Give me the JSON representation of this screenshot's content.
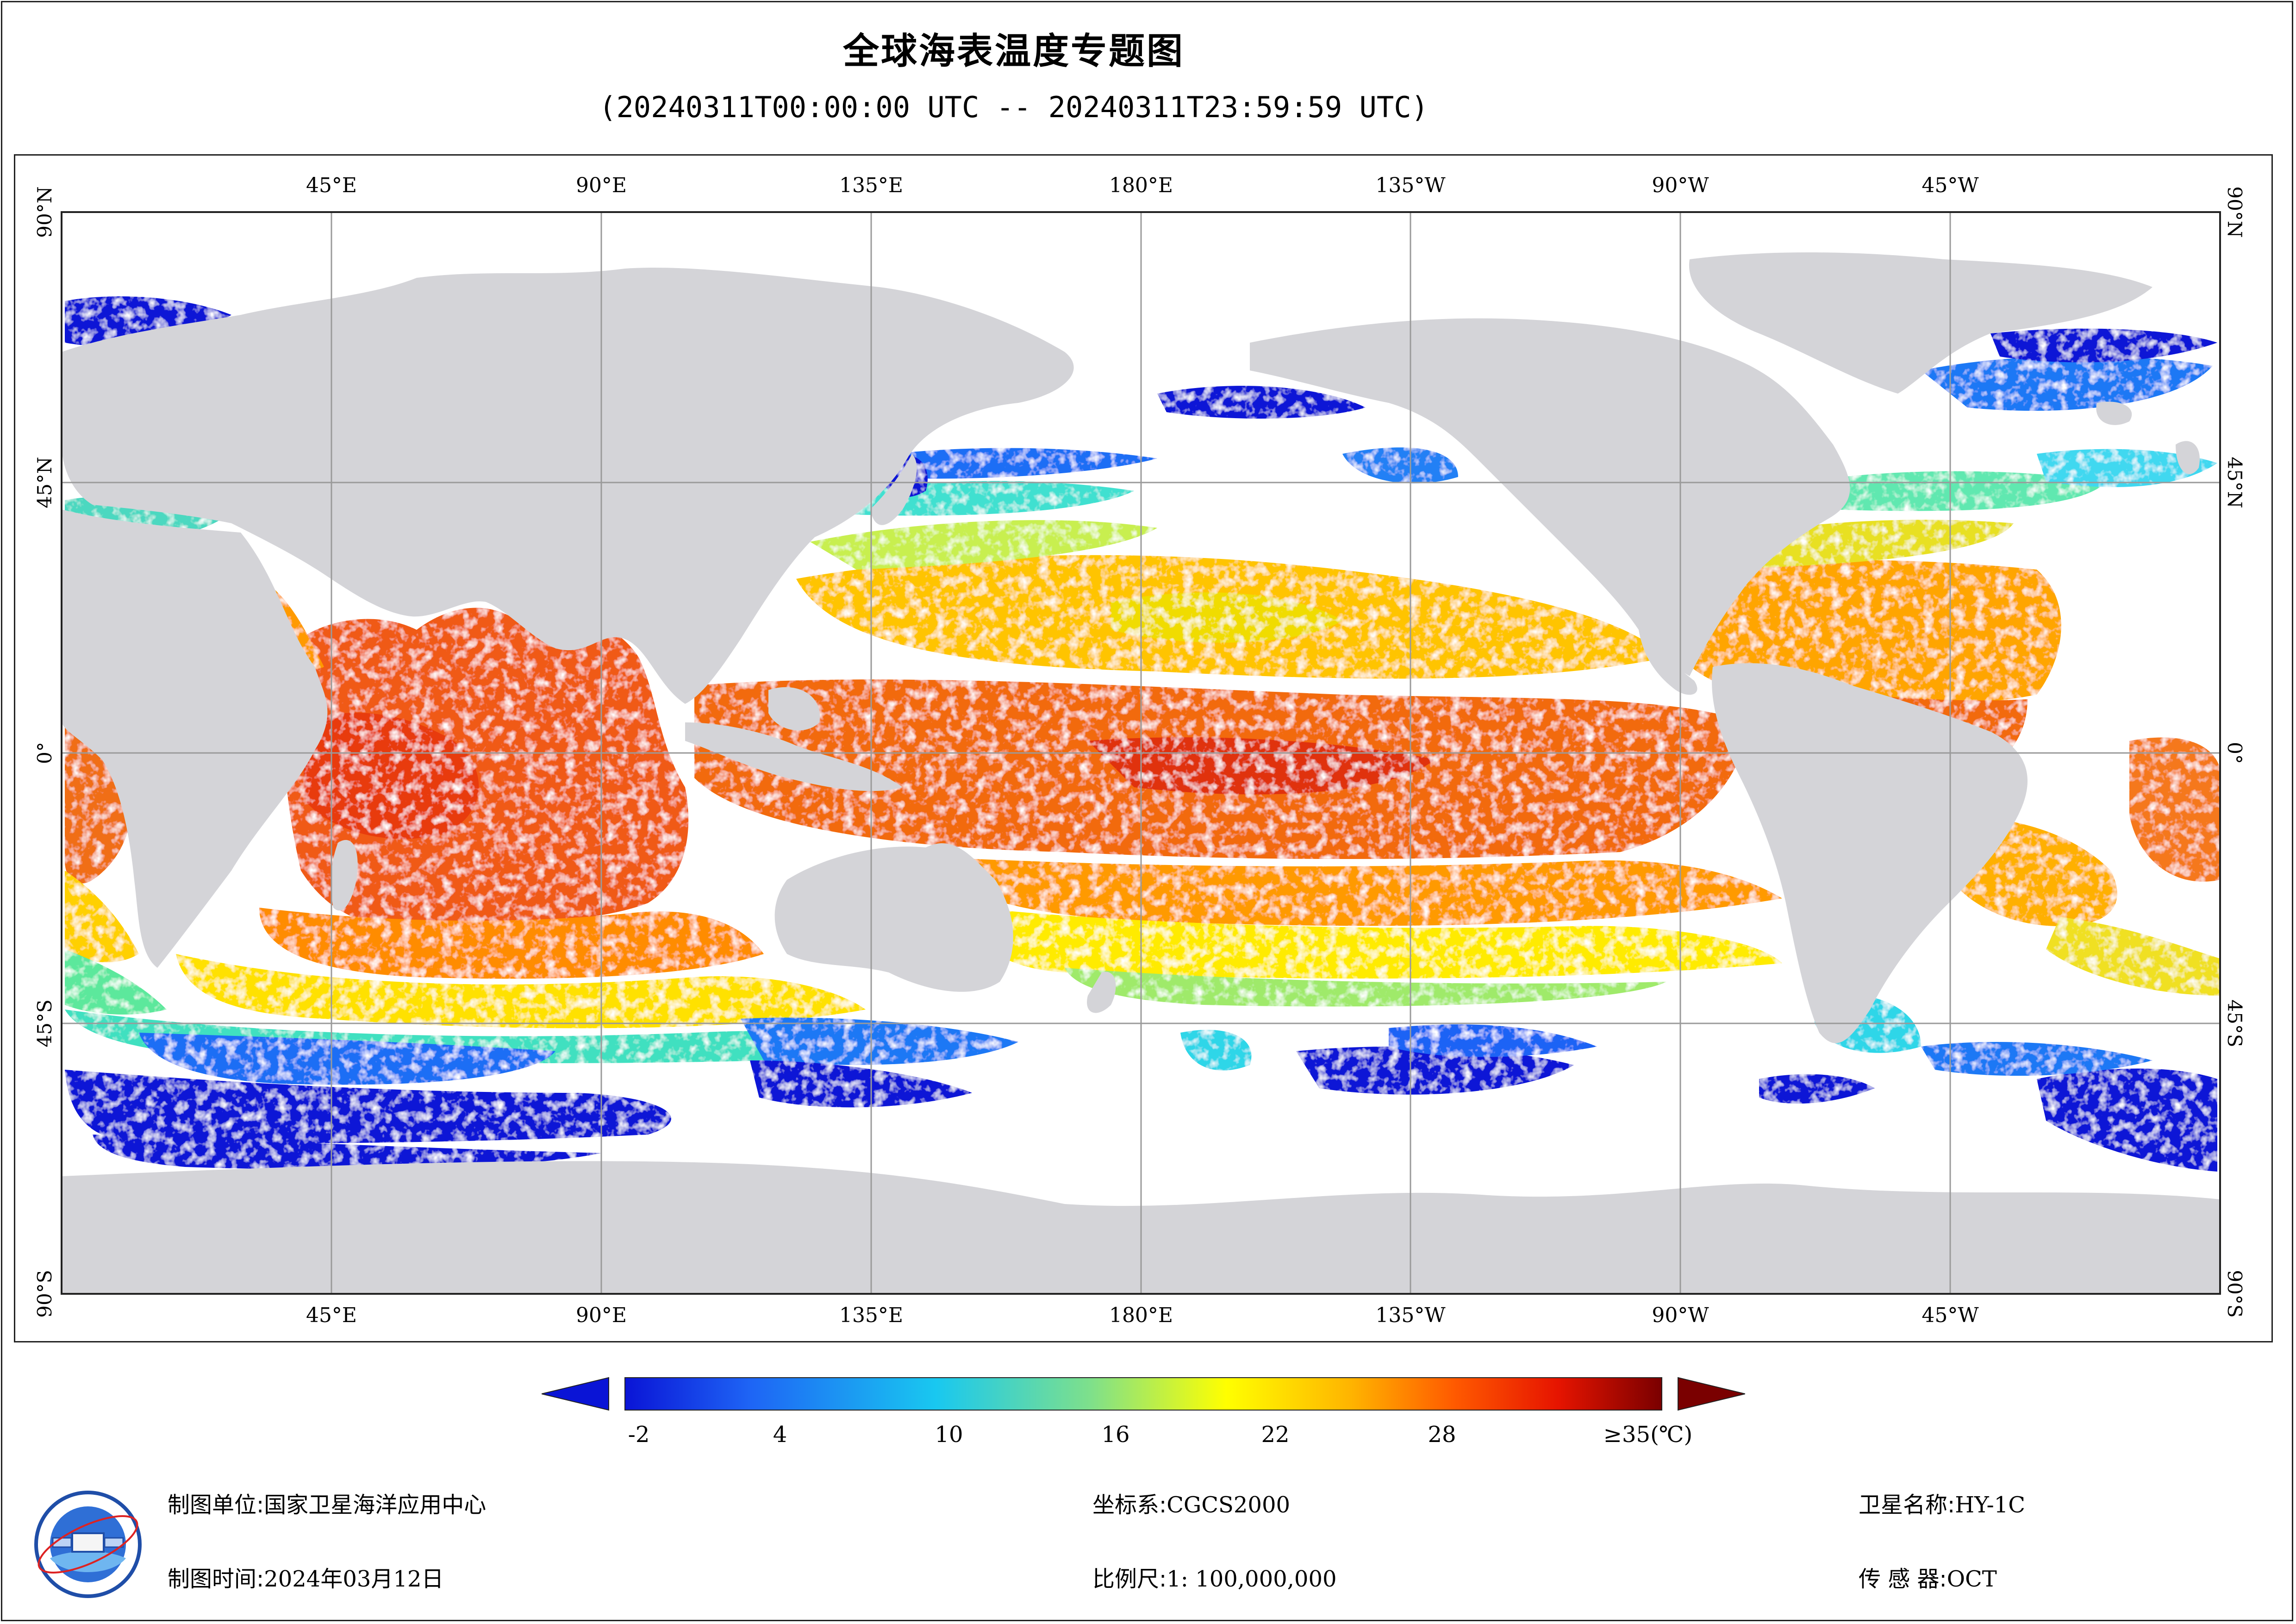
{
  "title": "全球海表温度专题图",
  "subtitle": "(20240311T00:00:00 UTC -- 20240311T23:59:59 UTC)",
  "map": {
    "lon_labels_top": [
      "45°E",
      "90°E",
      "135°E",
      "180°E",
      "135°W",
      "90°W",
      "45°W"
    ],
    "lon_labels_bottom": [
      "45°E",
      "90°E",
      "135°E",
      "180°E",
      "135°W",
      "90°W",
      "45°W"
    ],
    "lat_labels": [
      "90°N",
      "45°N",
      "0°",
      "45°S",
      "90°S"
    ],
    "colors": {
      "land": "#d4d4d8",
      "no_data": "#ffffff",
      "graticule": "#9a9a9a",
      "frame": "#222222"
    }
  },
  "colorbar": {
    "ticks": [
      "-2",
      "4",
      "10",
      "16",
      "22",
      "28",
      "≥35(℃)"
    ],
    "min_value": -2,
    "max_value": 35,
    "colors": [
      "#0a14d6",
      "#1e64f5",
      "#19c8f0",
      "#7fe08a",
      "#ffff00",
      "#ffb400",
      "#ff5a00",
      "#e61400",
      "#7a0000"
    ]
  },
  "footer": {
    "org_label": "制图单位:",
    "org_value": "国家卫星海洋应用中心",
    "time_label": "制图时间:",
    "time_value": "2024年03月12日",
    "crs_label": "坐标系:",
    "crs_value": "CGCS2000",
    "scale_label": "比例尺:",
    "scale_value": "1: 100,000,000",
    "satellite_label": "卫星名称:",
    "satellite_value": "HY-1C",
    "sensor_label": "传 感 器:",
    "sensor_value": "OCT"
  }
}
